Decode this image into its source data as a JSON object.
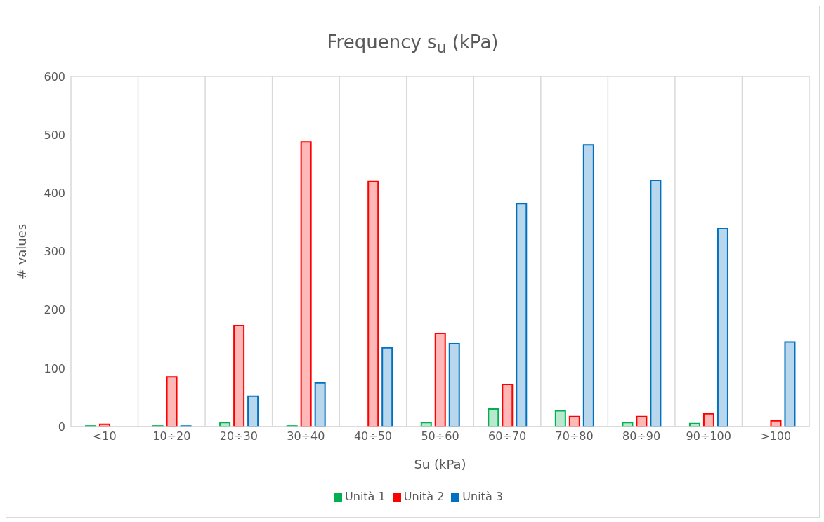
{
  "chart_data": {
    "type": "bar",
    "title": "Frequency s$_{u}$ (kPa)",
    "xlabel": "Su (kPa)",
    "ylabel": "# values",
    "categories": [
      "<10",
      "10÷20",
      "20÷30",
      "30÷40",
      "40÷50",
      "50÷60",
      "60÷70",
      "70÷80",
      "80÷90",
      "90÷100",
      ">100"
    ],
    "series": [
      {
        "name": "Unità 1",
        "color": "#00b050",
        "values": [
          1,
          1,
          7,
          1,
          null,
          7,
          30,
          27,
          7,
          5,
          null
        ]
      },
      {
        "name": "Unità 2",
        "color": "#ff0000",
        "values": [
          4,
          85,
          173,
          488,
          420,
          160,
          72,
          17,
          17,
          22,
          10
        ]
      },
      {
        "name": "Unità 3",
        "color": "#0070c0",
        "values": [
          null,
          1,
          52,
          75,
          135,
          142,
          382,
          483,
          422,
          339,
          145
        ]
      }
    ],
    "ylim": [
      0,
      600
    ],
    "yticks": [
      0,
      100,
      200,
      300,
      400,
      500,
      600
    ],
    "grid": true,
    "legend": "bottom"
  }
}
